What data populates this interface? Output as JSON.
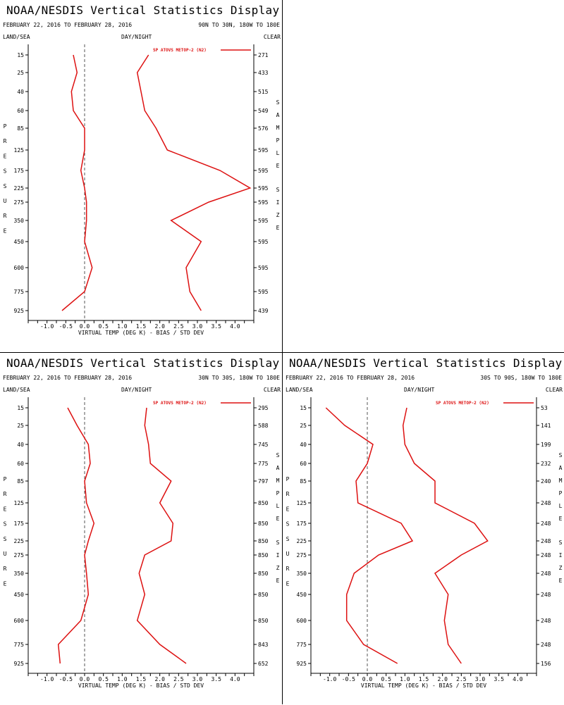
{
  "panels": [
    {
      "id": "tl",
      "title": "NOAA/NESDIS Vertical Statistics Display",
      "date_range": "FEBRUARY 22, 2016 TO FEBRUARY 28, 2016",
      "region": "90N TO 30N, 180W TO 180E",
      "left_header": "LAND/SEA",
      "center_header": "DAY/NIGHT",
      "right_header": "CLEAR"
    },
    {
      "id": "bl",
      "title": "NOAA/NESDIS Vertical Statistics Display",
      "date_range": "FEBRUARY 22, 2016 TO FEBRUARY 28, 2016",
      "region": "30N TO 30S, 180W TO 180E",
      "left_header": "LAND/SEA",
      "center_header": "DAY/NIGHT",
      "right_header": "CLEAR"
    },
    {
      "id": "br",
      "title": "NOAA/NESDIS Vertical Statistics Display",
      "date_range": "FEBRUARY 22, 2016 TO FEBRUARY 28, 2016",
      "region": "30S TO 90S, 180W TO 180E",
      "left_header": "LAND/SEA",
      "center_header": "DAY/NIGHT",
      "right_header": "CLEAR"
    }
  ],
  "colors": {
    "series": "#dd1111",
    "axis": "#000000",
    "zero_line": "#555555"
  },
  "chart_data": [
    {
      "type": "line",
      "xlabel": "VIRTUAL TEMP (DEG K) - BIAS / STD DEV",
      "ylabel": "PRESSURE",
      "y2label": "SAMPLE SIZE",
      "xlim": [
        -1.5,
        4.5
      ],
      "x_ticks": [
        "-1.0",
        "-0.5",
        "0.0",
        "0.5",
        "1.0",
        "1.5",
        "2.0",
        "2.5",
        "3.0",
        "3.5",
        "4.0"
      ],
      "pressure_levels": [
        "15",
        "25",
        "40",
        "60",
        "85",
        "125",
        "175",
        "225",
        "275",
        "350",
        "450",
        "600",
        "775",
        "925"
      ],
      "sample_size": [
        "271",
        "433",
        "515",
        "549",
        "576",
        "595",
        "595",
        "595",
        "595",
        "595",
        "595",
        "595",
        "595",
        "439"
      ],
      "legend": "SP ATOVS METOP-2 (N2)",
      "legend_position": "top-right",
      "bias": [
        -0.3,
        -0.2,
        -0.35,
        -0.3,
        0.0,
        0.0,
        -0.1,
        0.0,
        0.05,
        0.05,
        0.0,
        0.2,
        0.0,
        -0.6
      ],
      "std_dev": [
        1.7,
        1.4,
        1.5,
        1.6,
        1.9,
        2.2,
        3.6,
        4.4,
        3.3,
        2.3,
        3.1,
        2.7,
        2.8,
        3.1
      ]
    },
    {
      "type": "line",
      "xlabel": "VIRTUAL TEMP (DEG K) - BIAS / STD DEV",
      "ylabel": "PRESSURE",
      "y2label": "SAMPLE SIZE",
      "xlim": [
        -1.5,
        4.5
      ],
      "x_ticks": [
        "-1.0",
        "-0.5",
        "0.0",
        "0.5",
        "1.0",
        "1.5",
        "2.0",
        "2.5",
        "3.0",
        "3.5",
        "4.0"
      ],
      "pressure_levels": [
        "15",
        "25",
        "40",
        "60",
        "85",
        "125",
        "175",
        "225",
        "275",
        "350",
        "450",
        "600",
        "775",
        "925"
      ],
      "sample_size": [
        "295",
        "588",
        "745",
        "775",
        "797",
        "850",
        "850",
        "850",
        "850",
        "850",
        "850",
        "850",
        "843",
        "652"
      ],
      "legend": "SP ATOVS METOP-2 (N2)",
      "legend_position": "top-right",
      "bias": [
        -0.45,
        -0.2,
        0.1,
        0.15,
        0.0,
        0.05,
        0.25,
        0.1,
        0.0,
        0.05,
        0.1,
        -0.1,
        -0.7,
        -0.65
      ],
      "std_dev": [
        1.65,
        1.6,
        1.7,
        1.75,
        2.3,
        2.0,
        2.35,
        2.3,
        1.6,
        1.45,
        1.6,
        1.4,
        2.0,
        2.7
      ]
    },
    {
      "type": "line",
      "xlabel": "VIRTUAL TEMP (DEG K) - BIAS / STD DEV",
      "ylabel": "PRESSURE",
      "y2label": "SAMPLE SIZE",
      "xlim": [
        -1.5,
        4.5
      ],
      "x_ticks": [
        "-1.0",
        "-0.5",
        "0.0",
        "0.5",
        "1.0",
        "1.5",
        "2.0",
        "2.5",
        "3.0",
        "3.5",
        "4.0"
      ],
      "pressure_levels": [
        "15",
        "25",
        "40",
        "60",
        "85",
        "125",
        "175",
        "225",
        "275",
        "350",
        "450",
        "600",
        "775",
        "925"
      ],
      "sample_size": [
        "53",
        "141",
        "199",
        "232",
        "240",
        "248",
        "248",
        "248",
        "248",
        "248",
        "248",
        "248",
        "248",
        "156"
      ],
      "legend": "SP ATOVS METOP-2 (N2)",
      "legend_position": "top-right",
      "bias": [
        -1.1,
        -0.6,
        0.15,
        0.0,
        -0.3,
        -0.25,
        0.9,
        1.2,
        0.3,
        -0.35,
        -0.55,
        -0.55,
        -0.1,
        0.8
      ],
      "std_dev": [
        1.05,
        0.95,
        1.0,
        1.25,
        1.8,
        1.8,
        2.85,
        3.2,
        2.5,
        1.8,
        2.15,
        2.05,
        2.15,
        2.5
      ]
    }
  ]
}
